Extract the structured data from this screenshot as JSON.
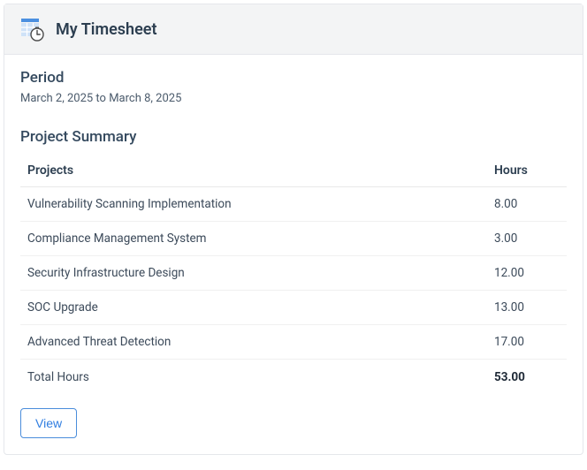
{
  "header": {
    "title": "My Timesheet",
    "icon_name": "timesheet-clock-icon",
    "icon_calendar_color": "#4b8fe0",
    "icon_clock_face": "#ffffff",
    "icon_clock_border": "#4a4a4a"
  },
  "period": {
    "label": "Period",
    "value": "March 2, 2025 to March 8, 2025"
  },
  "summary": {
    "title": "Project Summary",
    "columns": {
      "projects": "Projects",
      "hours": "Hours"
    },
    "rows": [
      {
        "project": "Vulnerability Scanning Implementation",
        "hours": "8.00"
      },
      {
        "project": "Compliance Management System",
        "hours": "3.00"
      },
      {
        "project": "Security Infrastructure Design",
        "hours": "12.00"
      },
      {
        "project": "SOC Upgrade",
        "hours": "13.00"
      },
      {
        "project": "Advanced Threat Detection",
        "hours": "17.00"
      }
    ],
    "total": {
      "label": "Total Hours",
      "value": "53.00"
    }
  },
  "actions": {
    "view": "View"
  },
  "style": {
    "header_bg": "#f3f4f5",
    "border_color": "#e5e7eb",
    "title_color": "#2c3e50",
    "text_color": "#3c4a5a",
    "button_border": "#4a8ddb",
    "button_text": "#2f7de0"
  }
}
